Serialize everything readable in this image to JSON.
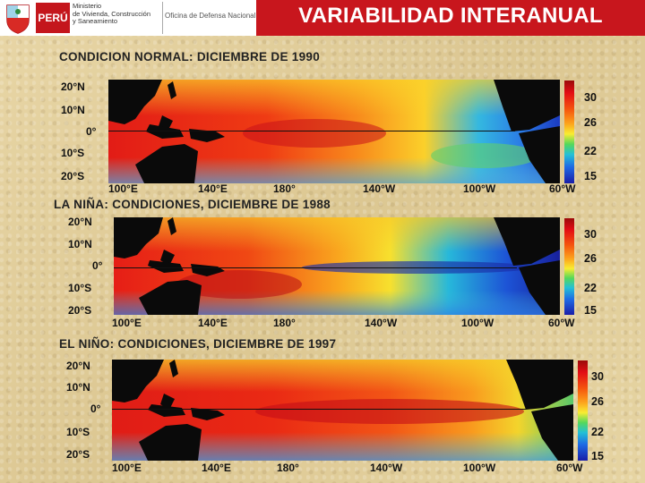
{
  "header": {
    "country": "PERÚ",
    "ministry_lines": [
      "Ministerio",
      "de Vivienda, Construcción",
      "y Saneamiento"
    ],
    "office": "Oficina de Defensa Nacional",
    "title": "VARIABILIDAD  INTERANUAL"
  },
  "panels": [
    {
      "caption": "CONDICION NORMAL: DICIEMBRE DE 1990",
      "lat_labels": [
        "20°N",
        "10°N",
        "0°",
        "10°S",
        "20°S"
      ],
      "lon_labels": [
        "100°E",
        "140°E",
        "180°",
        "140°W",
        "100°W",
        "60°W"
      ],
      "colorbar_labels": [
        "30",
        "26",
        "22",
        "15"
      ]
    },
    {
      "caption": "LA NIÑA:  CONDICIONES, DICIEMBRE DE 1988",
      "lat_labels": [
        "20°N",
        "10°N",
        "0°",
        "10°S",
        "20°S"
      ],
      "lon_labels": [
        "100°E",
        "140°E",
        "180°",
        "140°W",
        "100°W",
        "60°W"
      ],
      "colorbar_labels": [
        "30",
        "26",
        "22",
        "15"
      ]
    },
    {
      "caption": "EL NIÑO:  CONDICIONES, DICIEMBRE DE 1997",
      "lat_labels": [
        "20°N",
        "10°N",
        "0°",
        "10°S",
        "20°S"
      ],
      "lon_labels": [
        "100°E",
        "140°E",
        "180°",
        "140°W",
        "100°W",
        "60°W"
      ],
      "colorbar_labels": [
        "30",
        "26",
        "22",
        "15"
      ]
    }
  ],
  "colors": {
    "title_red": "#c8161d",
    "warm": "#e8201a",
    "mid": "#f7a81e",
    "cool": "#1e6ae4",
    "land": "#0a0a0a"
  }
}
